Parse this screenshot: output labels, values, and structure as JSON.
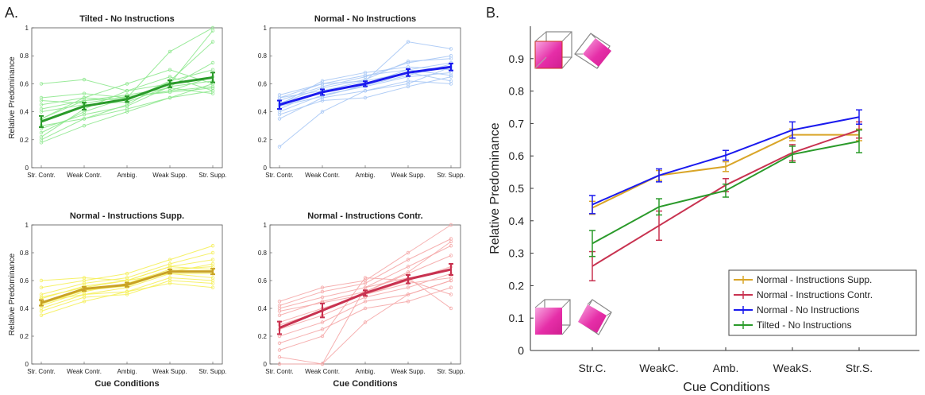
{
  "figure": {
    "panel_a_label": "A.",
    "panel_b_label": "B."
  },
  "chart_data": [
    {
      "type": "line",
      "panel": "A",
      "title": "Tilted - No Instructions",
      "xlabel": "",
      "ylabel": "Relative Predominance",
      "categories": [
        "Str. Contr.",
        "Weak Contr.",
        "Ambig.",
        "Weak Supp.",
        "Str. Supp."
      ],
      "ylim": [
        0,
        1
      ],
      "yticks": [
        0,
        0.2,
        0.4,
        0.6,
        0.8,
        1
      ],
      "ytick_labels": [
        "0",
        "0.2",
        "0.4",
        "0.6",
        "0.8",
        "1"
      ],
      "mean_color": "#2a9a2a",
      "individual_color": "#8fe88f",
      "mean": [
        0.33,
        0.44,
        0.49,
        0.6,
        0.645
      ],
      "error": [
        0.04,
        0.025,
        0.02,
        0.025,
        0.035
      ],
      "individuals": [
        [
          0.6,
          0.63,
          0.55,
          0.6,
          0.98
        ],
        [
          0.5,
          0.53,
          0.5,
          0.83,
          1.0
        ],
        [
          0.45,
          0.5,
          0.48,
          0.62,
          0.9
        ],
        [
          0.4,
          0.45,
          0.47,
          0.58,
          0.75
        ],
        [
          0.35,
          0.48,
          0.5,
          0.55,
          0.65
        ],
        [
          0.3,
          0.35,
          0.42,
          0.5,
          0.6
        ],
        [
          0.25,
          0.4,
          0.5,
          0.55,
          0.58
        ],
        [
          0.2,
          0.35,
          0.45,
          0.62,
          0.7
        ],
        [
          0.18,
          0.3,
          0.4,
          0.5,
          0.55
        ],
        [
          0.22,
          0.42,
          0.55,
          0.65,
          0.55
        ],
        [
          0.35,
          0.5,
          0.6,
          0.7,
          0.6
        ],
        [
          0.42,
          0.48,
          0.52,
          0.57,
          0.53
        ],
        [
          0.28,
          0.38,
          0.44,
          0.58,
          0.62
        ],
        [
          0.48,
          0.46,
          0.51,
          0.54,
          0.57
        ]
      ]
    },
    {
      "type": "line",
      "panel": "A",
      "title": "Normal - No Instructions",
      "xlabel": "",
      "ylabel": "",
      "categories": [
        "Str. Contr.",
        "Weak Contr.",
        "Ambig.",
        "Weak Supp.",
        "Str. Supp."
      ],
      "ylim": [
        0,
        1
      ],
      "yticks": [
        0,
        0.2,
        0.4,
        0.6,
        0.8,
        1
      ],
      "ytick_labels": [
        "0",
        "0.2",
        "0.4",
        "0.6",
        "0.8",
        "1"
      ],
      "mean_color": "#1a1aee",
      "individual_color": "#a8c8f5",
      "mean": [
        0.45,
        0.54,
        0.6,
        0.68,
        0.72
      ],
      "error": [
        0.03,
        0.02,
        0.018,
        0.025,
        0.025
      ],
      "individuals": [
        [
          0.5,
          0.6,
          0.62,
          0.9,
          0.85
        ],
        [
          0.48,
          0.58,
          0.65,
          0.75,
          0.8
        ],
        [
          0.42,
          0.55,
          0.6,
          0.7,
          0.75
        ],
        [
          0.4,
          0.52,
          0.58,
          0.65,
          0.68
        ],
        [
          0.45,
          0.62,
          0.68,
          0.72,
          0.7
        ],
        [
          0.35,
          0.5,
          0.55,
          0.62,
          0.6
        ],
        [
          0.38,
          0.48,
          0.5,
          0.58,
          0.65
        ],
        [
          0.15,
          0.4,
          0.55,
          0.6,
          0.72
        ],
        [
          0.5,
          0.55,
          0.62,
          0.68,
          0.62
        ],
        [
          0.46,
          0.57,
          0.63,
          0.76,
          0.78
        ],
        [
          0.44,
          0.51,
          0.59,
          0.66,
          0.74
        ],
        [
          0.52,
          0.6,
          0.66,
          0.7,
          0.66
        ]
      ]
    },
    {
      "type": "line",
      "panel": "A",
      "title": "Normal - Instructions Supp.",
      "xlabel": "Cue Conditions",
      "ylabel": "Relative Predominance",
      "categories": [
        "Str. Contr.",
        "Weak Contr.",
        "Ambig.",
        "Weak Supp.",
        "Str. Supp."
      ],
      "ylim": [
        0,
        1
      ],
      "yticks": [
        0,
        0.2,
        0.4,
        0.6,
        0.8,
        1
      ],
      "ytick_labels": [
        "0",
        "0.2",
        "0.4",
        "0.6",
        "0.8",
        "1"
      ],
      "mean_color": "#c9a227",
      "individual_color": "#f5ef5a",
      "mean": [
        0.44,
        0.54,
        0.57,
        0.665,
        0.665
      ],
      "error": [
        0.02,
        0.015,
        0.015,
        0.015,
        0.02
      ],
      "individuals": [
        [
          0.55,
          0.6,
          0.65,
          0.75,
          0.85
        ],
        [
          0.5,
          0.58,
          0.62,
          0.72,
          0.8
        ],
        [
          0.48,
          0.55,
          0.6,
          0.7,
          0.75
        ],
        [
          0.42,
          0.52,
          0.58,
          0.68,
          0.7
        ],
        [
          0.45,
          0.5,
          0.55,
          0.65,
          0.65
        ],
        [
          0.4,
          0.5,
          0.52,
          0.62,
          0.6
        ],
        [
          0.38,
          0.48,
          0.5,
          0.6,
          0.58
        ],
        [
          0.35,
          0.45,
          0.52,
          0.58,
          0.55
        ],
        [
          0.6,
          0.62,
          0.6,
          0.65,
          0.62
        ],
        [
          0.47,
          0.56,
          0.6,
          0.7,
          0.68
        ],
        [
          0.43,
          0.53,
          0.56,
          0.66,
          0.72
        ]
      ]
    },
    {
      "type": "line",
      "panel": "A",
      "title": "Normal - Instructions Contr.",
      "xlabel": "Cue Conditions",
      "ylabel": "",
      "categories": [
        "Str. Contr.",
        "Weak Contr.",
        "Ambig.",
        "Weak Supp.",
        "Str. Supp."
      ],
      "ylim": [
        0,
        1
      ],
      "yticks": [
        0,
        0.2,
        0.4,
        0.6,
        0.8,
        1
      ],
      "ytick_labels": [
        "0",
        "0.2",
        "0.4",
        "0.6",
        "0.8",
        "1"
      ],
      "mean_color": "#c83250",
      "individual_color": "#f5a8a8",
      "mean": [
        0.26,
        0.385,
        0.51,
        0.61,
        0.68
      ],
      "error": [
        0.045,
        0.05,
        0.02,
        0.03,
        0.04
      ],
      "individuals": [
        [
          0.45,
          0.55,
          0.6,
          0.8,
          1.0
        ],
        [
          0.42,
          0.52,
          0.58,
          0.75,
          0.9
        ],
        [
          0.4,
          0.48,
          0.55,
          0.7,
          0.85
        ],
        [
          0.35,
          0.45,
          0.52,
          0.65,
          0.78
        ],
        [
          0.3,
          0.4,
          0.5,
          0.6,
          0.7
        ],
        [
          0.25,
          0.35,
          0.48,
          0.55,
          0.65
        ],
        [
          0.2,
          0.3,
          0.45,
          0.5,
          0.6
        ],
        [
          0.15,
          0.25,
          0.4,
          0.45,
          0.55
        ],
        [
          0.05,
          0.0,
          0.3,
          0.5,
          0.6
        ],
        [
          0.0,
          0.0,
          0.55,
          0.62,
          0.4
        ],
        [
          0.1,
          0.2,
          0.62,
          0.6,
          0.5
        ],
        [
          0.38,
          0.44,
          0.5,
          0.58,
          0.62
        ],
        [
          0.28,
          0.38,
          0.52,
          0.66,
          0.88
        ]
      ]
    },
    {
      "type": "line",
      "panel": "B",
      "title": "",
      "xlabel": "Cue Conditions",
      "ylabel": "Relative Predominance",
      "categories": [
        "Str.C.",
        "WeakC.",
        "Amb.",
        "WeakS.",
        "Str.S."
      ],
      "ylim": [
        0,
        1
      ],
      "yticks": [
        0,
        0.1,
        0.2,
        0.3,
        0.4,
        0.5,
        0.6,
        0.7,
        0.8,
        0.9
      ],
      "ytick_labels": [
        "0",
        "0.1",
        "0.2",
        "0.3",
        "0.4",
        "0.5",
        "0.6",
        "0.7",
        "0.8",
        "0.9"
      ],
      "legend_position": "bottom-right",
      "series": [
        {
          "name": "Normal - Instructions Supp.",
          "color": "#d9a528",
          "values": [
            0.44,
            0.54,
            0.567,
            0.665,
            0.665
          ],
          "error": [
            0.02,
            0.015,
            0.015,
            0.018,
            0.018
          ]
        },
        {
          "name": "Normal - Instructions Contr.",
          "color": "#c83250",
          "values": [
            0.26,
            0.385,
            0.51,
            0.61,
            0.68
          ],
          "error": [
            0.045,
            0.045,
            0.02,
            0.025,
            0.025
          ]
        },
        {
          "name": "Normal - No Instructions",
          "color": "#1a1aee",
          "values": [
            0.45,
            0.54,
            0.602,
            0.68,
            0.72
          ],
          "error": [
            0.028,
            0.02,
            0.015,
            0.025,
            0.022
          ]
        },
        {
          "name": "Tilted - No Instructions",
          "color": "#2a9a2a",
          "values": [
            0.33,
            0.443,
            0.493,
            0.605,
            0.645
          ],
          "error": [
            0.04,
            0.025,
            0.02,
            0.025,
            0.035
          ]
        }
      ]
    }
  ],
  "icons": {
    "cube_color": "#e62ea8",
    "top_icons": [
      "tilted-cube-front-icon",
      "tilted-cube-diamond-icon"
    ],
    "bottom_icons": [
      "normal-cube-front-icon",
      "normal-cube-diamond-icon"
    ]
  }
}
